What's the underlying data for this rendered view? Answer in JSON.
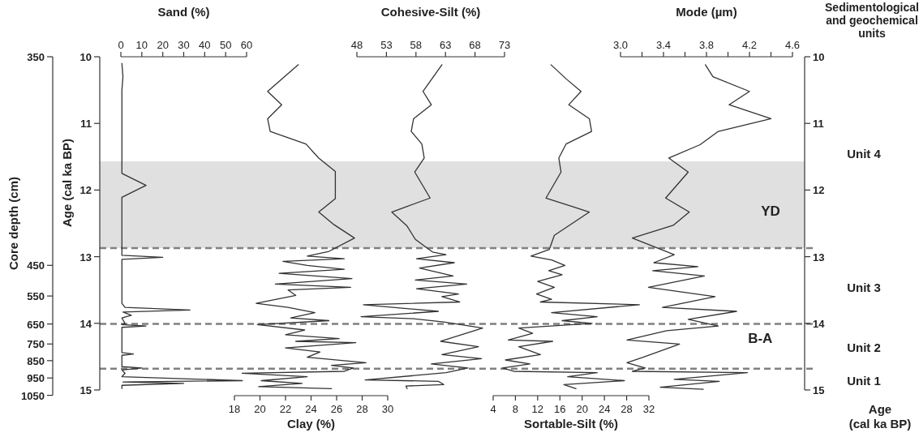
{
  "chart_data": [
    {
      "type": "line",
      "xlabel": "Sand (%)",
      "xlim": [
        0,
        60
      ],
      "xticks": [
        0,
        10,
        20,
        30,
        40,
        50,
        60
      ],
      "ylabel": "Age (cal ka BP)",
      "ylim": [
        15,
        10
      ],
      "yticks": [
        10,
        11,
        12,
        13,
        14,
        15
      ],
      "series": [
        {
          "color": "#333333",
          "x": [
            0.5,
            1,
            0.5,
            0.5,
            12,
            0.5,
            0.5,
            20,
            0.5,
            0.5,
            2,
            33,
            1,
            5,
            0.5,
            2,
            0.5,
            12,
            0.5,
            0.5,
            6,
            0.5,
            0.5,
            10,
            0.5,
            2,
            0.5,
            58,
            1,
            30,
            0.5,
            0.5
          ],
          "values": [
            10.1,
            10.3,
            10.5,
            11.75,
            11.93,
            12.11,
            12.98,
            13.01,
            13.04,
            13.7,
            13.76,
            13.8,
            13.83,
            13.88,
            13.92,
            14.0,
            14.02,
            14.04,
            14.06,
            14.44,
            14.46,
            14.48,
            14.65,
            14.67,
            14.7,
            14.75,
            14.8,
            14.86,
            14.88,
            14.9,
            14.93,
            14.98
          ]
        }
      ],
      "bands": [
        {
          "axis": "y",
          "from": 11.57,
          "to": 12.87,
          "label": "YD",
          "color": "#e0e0e0"
        }
      ],
      "ref_lines": [
        {
          "axis": "y",
          "value": 12.87,
          "color": "#808080",
          "line_style": "dashed"
        },
        {
          "axis": "y",
          "value": 14.01,
          "color": "#808080",
          "line_style": "dashed"
        },
        {
          "axis": "y",
          "value": 14.68,
          "color": "#808080",
          "line_style": "dashed"
        }
      ],
      "annotations": [
        "Core depth (cm)",
        "350",
        "450",
        "550",
        "650",
        "750",
        "850",
        "950",
        "1050"
      ]
    },
    {
      "type": "line",
      "xlabel": "Clay (%)",
      "xlim": [
        18,
        30
      ],
      "xticks": [
        18,
        20,
        22,
        24,
        26,
        28,
        30
      ],
      "ylim": [
        15,
        10
      ],
      "tick_labels": "x",
      "series": [
        {
          "color": "#333333",
          "x": [
            23.0,
            20.6,
            21.7,
            20.6,
            20.8,
            23.6,
            24.6,
            25.9,
            25.9,
            24.6,
            25.8,
            27.4,
            25.4,
            23.7,
            26.6,
            21.8,
            23.7,
            26.6,
            21.5,
            27.2,
            21.2,
            27.1,
            22.2,
            22.8,
            19.7,
            22.2,
            24.3,
            22.4,
            25.4,
            19.8,
            23.5,
            22.0,
            26.2,
            22.8,
            27.5,
            22.0,
            24.7,
            23.7,
            28.3,
            25.6,
            27.3,
            26.6,
            18.6,
            23.7,
            20.1,
            23.3,
            19.9,
            25.6
          ],
          "values": [
            10.12,
            10.52,
            10.72,
            10.93,
            11.12,
            11.31,
            11.52,
            11.72,
            12.13,
            12.33,
            12.52,
            12.72,
            12.92,
            12.99,
            13.03,
            13.07,
            13.13,
            13.19,
            13.25,
            13.33,
            13.41,
            13.46,
            13.5,
            13.58,
            13.7,
            13.76,
            13.84,
            13.92,
            13.96,
            14.02,
            14.1,
            14.17,
            14.23,
            14.27,
            14.29,
            14.37,
            14.43,
            14.51,
            14.59,
            14.63,
            14.67,
            14.72,
            14.75,
            14.8,
            14.86,
            14.9,
            14.95,
            14.98
          ]
        }
      ]
    },
    {
      "type": "line",
      "xlabel": "Cohesive-Silt (%)",
      "xlim": [
        48,
        73
      ],
      "xticks": [
        48,
        53,
        58,
        63,
        68,
        73
      ],
      "ylim": [
        15,
        10
      ],
      "tick_labels": "x",
      "series": [
        {
          "color": "#333333",
          "x": [
            62.4,
            59.2,
            60.6,
            57.6,
            57.2,
            59.0,
            59.4,
            57.8,
            60.4,
            53.9,
            56.5,
            57.9,
            60.8,
            63.1,
            58.1,
            64.5,
            58.6,
            64.3,
            57.9,
            66.6,
            58.1,
            65.2,
            62.4,
            65.4,
            49.1,
            61.8,
            48.7,
            57.6,
            62.7,
            69.3,
            62.2,
            68.6,
            62.4,
            69.1,
            60.6,
            66.8,
            63.1,
            49.4,
            61.8,
            62.7,
            56.3,
            56.5
          ],
          "values": [
            10.12,
            10.52,
            10.72,
            10.93,
            11.12,
            11.31,
            11.52,
            11.73,
            12.12,
            12.33,
            12.54,
            12.74,
            12.93,
            12.97,
            13.03,
            13.09,
            13.17,
            13.29,
            13.35,
            13.41,
            13.48,
            13.56,
            13.6,
            13.68,
            13.72,
            13.82,
            13.9,
            13.93,
            13.98,
            14.07,
            14.27,
            14.35,
            14.47,
            14.53,
            14.61,
            14.67,
            14.74,
            14.85,
            14.87,
            14.92,
            14.94,
            14.98
          ]
        }
      ]
    },
    {
      "type": "line",
      "xlabel": "Sortable-Silt (%)",
      "xlim": [
        4,
        32
      ],
      "xticks": [
        4,
        8,
        12,
        16,
        20,
        24,
        28,
        32
      ],
      "ylim": [
        15,
        10
      ],
      "tick_labels": "x",
      "series": [
        {
          "color": "#333333",
          "x": [
            14.4,
            17.1,
            19.8,
            17.6,
            21.3,
            21.7,
            17.1,
            15.8,
            16.2,
            13.5,
            21.3,
            15.0,
            14.1,
            10.8,
            14.5,
            16.9,
            14.0,
            16.4,
            12.0,
            15.0,
            11.8,
            14.5,
            12.5,
            30.3,
            14.5,
            22.7,
            16.4,
            21.8,
            8.6,
            11.1,
            6.7,
            14.7,
            8.6,
            12.5,
            6.2,
            10.6,
            5.7,
            7.7,
            22.7,
            17.4,
            27.6,
            16.7,
            18.9
          ],
          "values": [
            10.12,
            10.33,
            10.52,
            10.72,
            10.93,
            11.12,
            11.31,
            11.52,
            11.73,
            12.12,
            12.33,
            12.68,
            12.89,
            12.99,
            13.05,
            13.13,
            13.21,
            13.27,
            13.37,
            13.46,
            13.56,
            13.64,
            13.68,
            13.72,
            13.84,
            13.9,
            13.96,
            14.0,
            14.07,
            14.15,
            14.25,
            14.27,
            14.35,
            14.47,
            14.55,
            14.61,
            14.67,
            14.72,
            14.74,
            14.8,
            14.86,
            14.92,
            14.98
          ]
        }
      ]
    },
    {
      "type": "line",
      "xlabel": "Mode (µm)",
      "xlim": [
        3.0,
        4.6
      ],
      "xticks": [
        {
          "value": 3.0,
          "label": "3.0"
        },
        {
          "value": 3.2,
          "label": null
        },
        {
          "value": 3.4,
          "label": "3.4"
        },
        {
          "value": 3.6,
          "label": null
        },
        {
          "value": 3.8,
          "label": "3.8"
        },
        {
          "value": 4.0,
          "label": null
        },
        {
          "value": 4.2,
          "label": "4.2"
        },
        {
          "value": 4.4,
          "label": null
        },
        {
          "value": 4.6,
          "label": "4.6"
        }
      ],
      "ylabel": "Age\n(cal ka BP)",
      "ylim": [
        15,
        10
      ],
      "yticks": [
        10,
        11,
        12,
        13,
        14,
        15
      ],
      "series": [
        {
          "color": "#333333",
          "x": [
            3.79,
            3.86,
            4.2,
            4.01,
            4.4,
            3.91,
            3.74,
            3.45,
            3.63,
            3.42,
            3.64,
            3.49,
            3.11,
            3.5,
            3.31,
            3.72,
            3.3,
            3.78,
            3.26,
            3.88,
            3.39,
            4.08,
            3.63,
            3.91,
            3.43,
            3.06,
            3.55,
            3.21,
            3.06,
            3.23,
            3.11,
            4.18,
            3.5,
            3.92,
            3.37,
            3.77
          ],
          "values": [
            10.12,
            10.3,
            10.52,
            10.72,
            10.93,
            11.12,
            11.32,
            11.52,
            11.73,
            12.12,
            12.33,
            12.53,
            12.72,
            12.97,
            13.09,
            13.15,
            13.21,
            13.29,
            13.46,
            13.6,
            13.76,
            13.82,
            13.94,
            14.04,
            14.11,
            14.25,
            14.31,
            14.51,
            14.59,
            14.67,
            14.72,
            14.74,
            14.84,
            14.87,
            14.96,
            14.99
          ]
        }
      ],
      "annotations": [
        "Sedimentological\nand geochemical\nunits",
        "Unit 4",
        "Unit 3",
        "Unit 2",
        "Unit 1",
        "B-A"
      ]
    }
  ]
}
